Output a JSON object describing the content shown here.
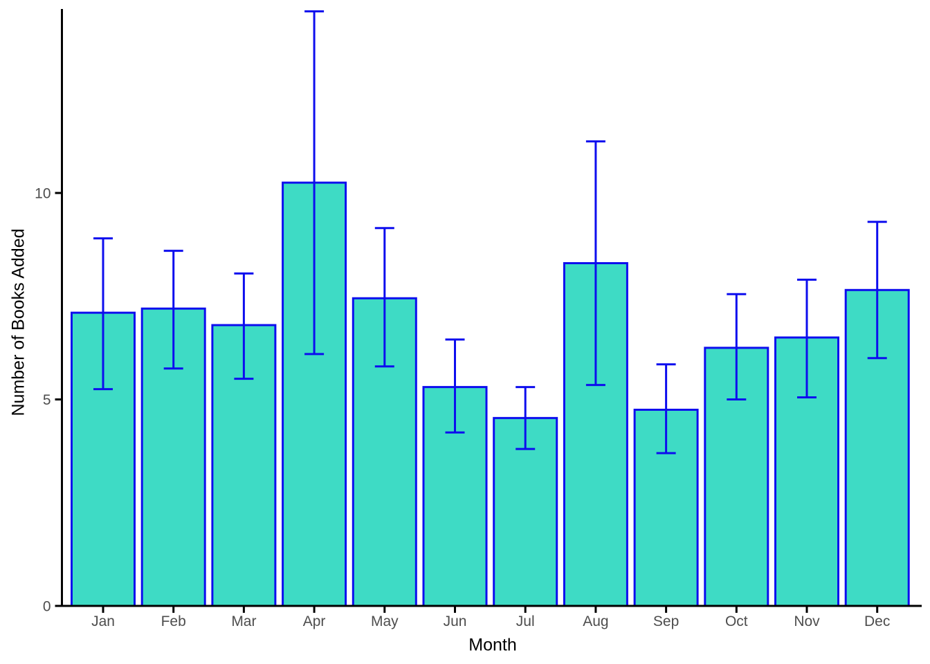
{
  "chart_data": {
    "type": "bar",
    "title": "",
    "xlabel": "Month",
    "ylabel": "Number of Books Added",
    "categories": [
      "Jan",
      "Feb",
      "Mar",
      "Apr",
      "May",
      "Jun",
      "Jul",
      "Aug",
      "Sep",
      "Oct",
      "Nov",
      "Dec"
    ],
    "series": [
      {
        "name": "Number of Books Added",
        "values": [
          7.1,
          7.2,
          6.8,
          10.25,
          7.45,
          5.3,
          4.55,
          8.3,
          4.75,
          6.25,
          6.5,
          7.65
        ],
        "error_low": [
          5.25,
          5.75,
          5.5,
          6.1,
          5.8,
          4.2,
          3.8,
          5.35,
          3.7,
          5.0,
          5.05,
          6.0
        ],
        "error_high": [
          8.9,
          8.6,
          8.05,
          14.4,
          9.15,
          6.45,
          5.3,
          11.25,
          5.85,
          7.55,
          7.9,
          9.3
        ]
      }
    ],
    "yticks": [
      "0",
      "5",
      "10"
    ],
    "ytick_values": [
      0,
      5,
      10
    ],
    "ylim": [
      0,
      14.5
    ],
    "grid": false,
    "legend_position": "none",
    "error_bars": true
  },
  "style": {
    "bar_fill": "#3EDBC5",
    "bar_stroke": "#0D0DEE",
    "error_color": "#0D0DEE",
    "axis_color": "#000000",
    "tick_label_color": "#4D4D4D",
    "background": "#FFFFFF"
  }
}
